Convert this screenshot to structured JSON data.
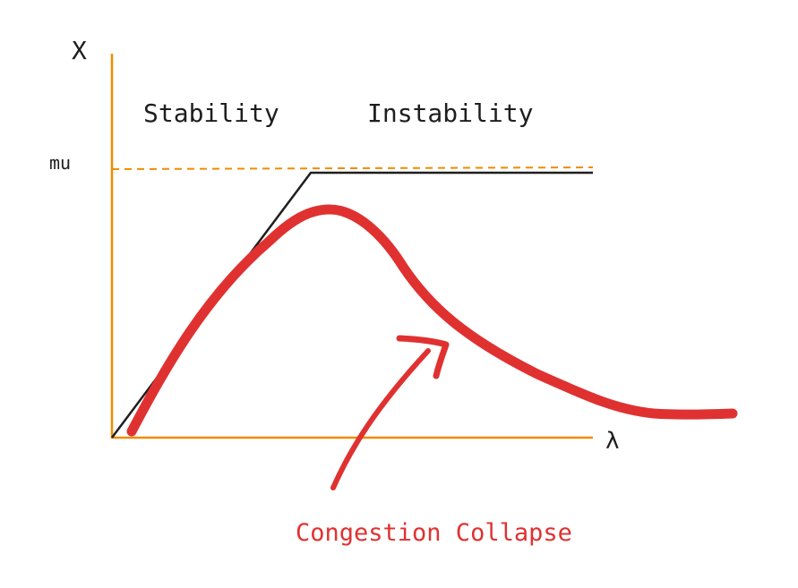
{
  "labels": {
    "y_axis": "X",
    "x_axis": "λ",
    "capacity": "mu",
    "region_left": "Stability",
    "region_right": "Instability",
    "annotation": "Congestion Collapse"
  },
  "colors": {
    "axis": "#f08c00",
    "ideal_curve": "#1e1e1e",
    "actual_curve": "#e03131",
    "text": "#1e1e1e"
  }
}
